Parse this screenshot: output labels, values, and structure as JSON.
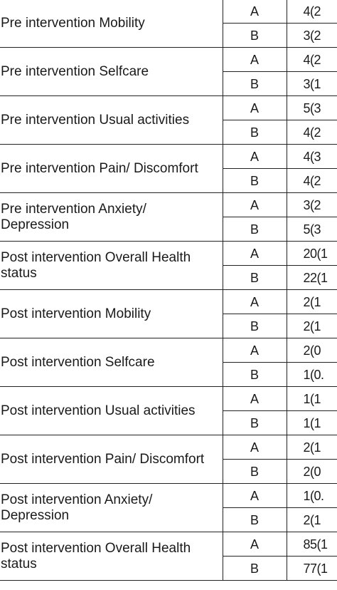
{
  "rows": [
    {
      "label": "Pre intervention Mobility",
      "groups": [
        {
          "group": "A",
          "value": "4(2"
        },
        {
          "group": "B",
          "value": "3(2"
        }
      ]
    },
    {
      "label": "Pre intervention Selfcare",
      "groups": [
        {
          "group": "A",
          "value": "4(2"
        },
        {
          "group": "B",
          "value": "3(1"
        }
      ]
    },
    {
      "label": "Pre intervention Usual activities",
      "groups": [
        {
          "group": "A",
          "value": "5(3"
        },
        {
          "group": "B",
          "value": "4(2"
        }
      ]
    },
    {
      "label": "Pre intervention Pain/ Discomfort",
      "groups": [
        {
          "group": "A",
          "value": "4(3"
        },
        {
          "group": "B",
          "value": "4(2"
        }
      ]
    },
    {
      "label": "Pre intervention Anxiety/ Depression",
      "groups": [
        {
          "group": "A",
          "value": "3(2"
        },
        {
          "group": "B",
          "value": "5(3"
        }
      ]
    },
    {
      "label": "Post intervention Overall Health status",
      "groups": [
        {
          "group": "A",
          "value": "20(1"
        },
        {
          "group": "B",
          "value": "22(1"
        }
      ]
    },
    {
      "label": "Post intervention Mobility",
      "groups": [
        {
          "group": "A",
          "value": "2(1"
        },
        {
          "group": "B",
          "value": "2(1"
        }
      ]
    },
    {
      "label": "Post intervention Selfcare",
      "groups": [
        {
          "group": "A",
          "value": "2(0"
        },
        {
          "group": "B",
          "value": "1(0."
        }
      ]
    },
    {
      "label": "Post intervention Usual activities",
      "groups": [
        {
          "group": "A",
          "value": "1(1"
        },
        {
          "group": "B",
          "value": "1(1"
        }
      ]
    },
    {
      "label": "Post intervention Pain/ Discomfort",
      "groups": [
        {
          "group": "A",
          "value": "2(1"
        },
        {
          "group": "B",
          "value": "2(0"
        }
      ]
    },
    {
      "label": "Post intervention Anxiety/ Depression",
      "groups": [
        {
          "group": "A",
          "value": "1(0."
        },
        {
          "group": "B",
          "value": "2(1"
        }
      ]
    },
    {
      "label": "Post intervention Overall Health status",
      "groups": [
        {
          "group": "A",
          "value": "85(1"
        },
        {
          "group": "B",
          "value": "77(1"
        }
      ]
    }
  ]
}
